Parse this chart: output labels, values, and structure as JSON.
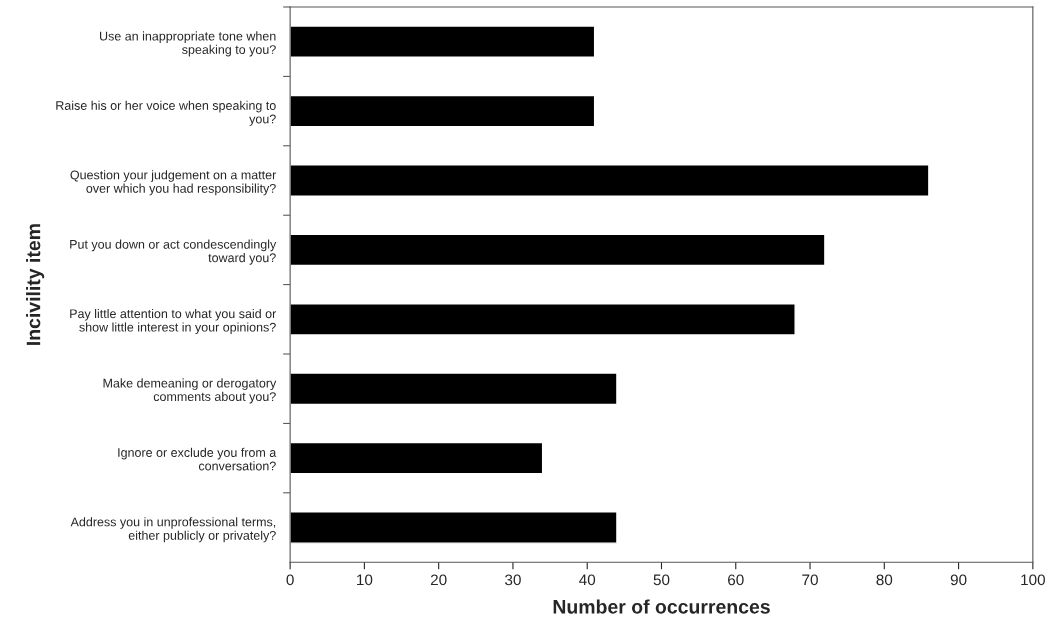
{
  "chart_data": {
    "type": "bar",
    "orientation": "horizontal",
    "xlabel": "Number of occurrences",
    "ylabel": "Incivility item",
    "categories": [
      "Use an inappropriate tone when\nspeaking to you?",
      "Raise his or her voice when speaking to\nyou?",
      "Question your judgement on a matter\nover which you had responsibility?",
      "Put you down or act condescendingly\ntoward you?",
      "Pay little attention to what you said or\nshow little interest in your opinions?",
      "Make demeaning or derogatory\ncomments about you?",
      "Ignore or exclude you from a\nconversation?",
      "Address you in unprofessional terms,\neither publicly or privately?"
    ],
    "values": [
      41,
      41,
      86,
      72,
      68,
      44,
      34,
      44
    ],
    "color": "#000000",
    "xlim": [
      0,
      100
    ],
    "xticks": [
      0,
      10,
      20,
      30,
      40,
      50,
      60,
      70,
      80,
      90,
      100
    ],
    "grid": false,
    "legend": false
  }
}
